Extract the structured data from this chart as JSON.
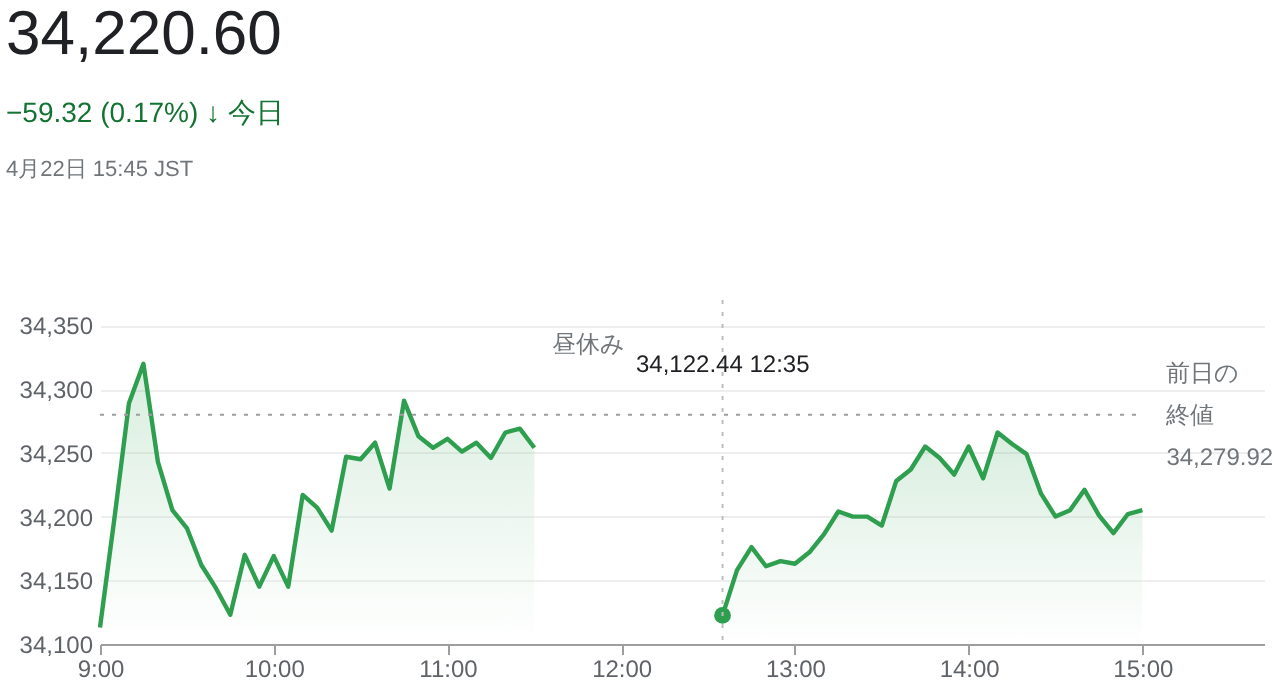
{
  "chart_data": {
    "type": "area",
    "title": "34,220.60",
    "subtitle": "−59.32 (0.17%) ↓ 今日",
    "annotations": [
      "4月22日 15:45 JST",
      "昼休み",
      "34,122.44  12:35",
      {
        "text": "34,279.92",
        "x": 15.0,
        "y": 34279.92
      }
    ],
    "series": [
      {
        "color": "#2e9e4f",
        "x": [
          9.0,
          9.0833,
          9.1667,
          9.25,
          9.3333,
          9.4167,
          9.5,
          9.5833,
          9.6667,
          9.75,
          9.8333,
          9.9167,
          10.0,
          10.0833,
          10.1667,
          10.25,
          10.3333,
          10.4167,
          10.5,
          10.5833,
          10.6667,
          10.75,
          10.8333,
          10.9167,
          11.0,
          11.0833,
          11.1667,
          11.25,
          11.3333,
          11.4167,
          11.5
        ],
        "values": [
          34113,
          34199,
          34289,
          34320,
          34243,
          34205,
          34191,
          34162,
          34144,
          34123,
          34170,
          34145,
          34169,
          34145,
          34217,
          34207,
          34189,
          34247,
          34245,
          34258,
          34222,
          34291,
          34263,
          34254,
          34261,
          34251,
          34258,
          34246,
          34266,
          34269,
          34254
        ]
      },
      {
        "color": "#2e9e4f",
        "x": [
          12.5833,
          12.6667,
          12.75,
          12.8333,
          12.9167,
          13.0,
          13.0833,
          13.1667,
          13.25,
          13.3333,
          13.4167,
          13.5,
          13.5833,
          13.6667,
          13.75,
          13.8333,
          13.9167,
          14.0,
          14.0833,
          14.1667,
          14.25,
          14.3333,
          14.4167,
          14.5,
          14.5833,
          14.6667,
          14.75,
          14.8333,
          14.9167,
          15.0
        ],
        "values": [
          34122.44,
          34158,
          34176,
          34161,
          34165,
          34163,
          34172,
          34186,
          34204,
          34200,
          34200,
          34193,
          34228,
          34237,
          34255,
          34246,
          34233,
          34255,
          34230,
          34266,
          34257,
          34249,
          34218,
          34200,
          34205,
          34221,
          34201,
          34187,
          34202,
          34205
        ]
      },
      {
        "type": "scatter",
        "marker": "circle",
        "color": "#2e9e4f",
        "x": [
          12.5833
        ],
        "values": [
          34122.44
        ]
      }
    ],
    "xlim": [
      9,
      15.7
    ],
    "xticks": [
      {
        "value": 9,
        "label": "9:00"
      },
      {
        "value": 10,
        "label": "10:00"
      },
      {
        "value": 11,
        "label": "11:00"
      },
      {
        "value": 12,
        "label": "12:00"
      },
      {
        "value": 13,
        "label": "13:00"
      },
      {
        "value": 14,
        "label": "14:00"
      },
      {
        "value": 15,
        "label": "15:00"
      }
    ],
    "ylim": [
      34100,
      34370
    ],
    "yticks": [
      {
        "value": 34100,
        "label": "34,100"
      },
      {
        "value": 34150,
        "label": "34,150"
      },
      {
        "value": 34200,
        "label": "34,200"
      },
      {
        "value": 34250,
        "label": "34,250"
      },
      {
        "value": 34300,
        "label": "34,300"
      },
      {
        "value": 34350,
        "label": "34,350"
      }
    ],
    "ref_lines": [
      {
        "axis": "y",
        "value": 34279.92,
        "label": "前日の終値",
        "color": "#9e9e9e",
        "line_style": "dotted"
      },
      {
        "axis": "x",
        "value": 12.5833,
        "color": "#bdbdbd",
        "line_style": "dotted"
      }
    ],
    "grid": "y",
    "line_style": "solid"
  }
}
